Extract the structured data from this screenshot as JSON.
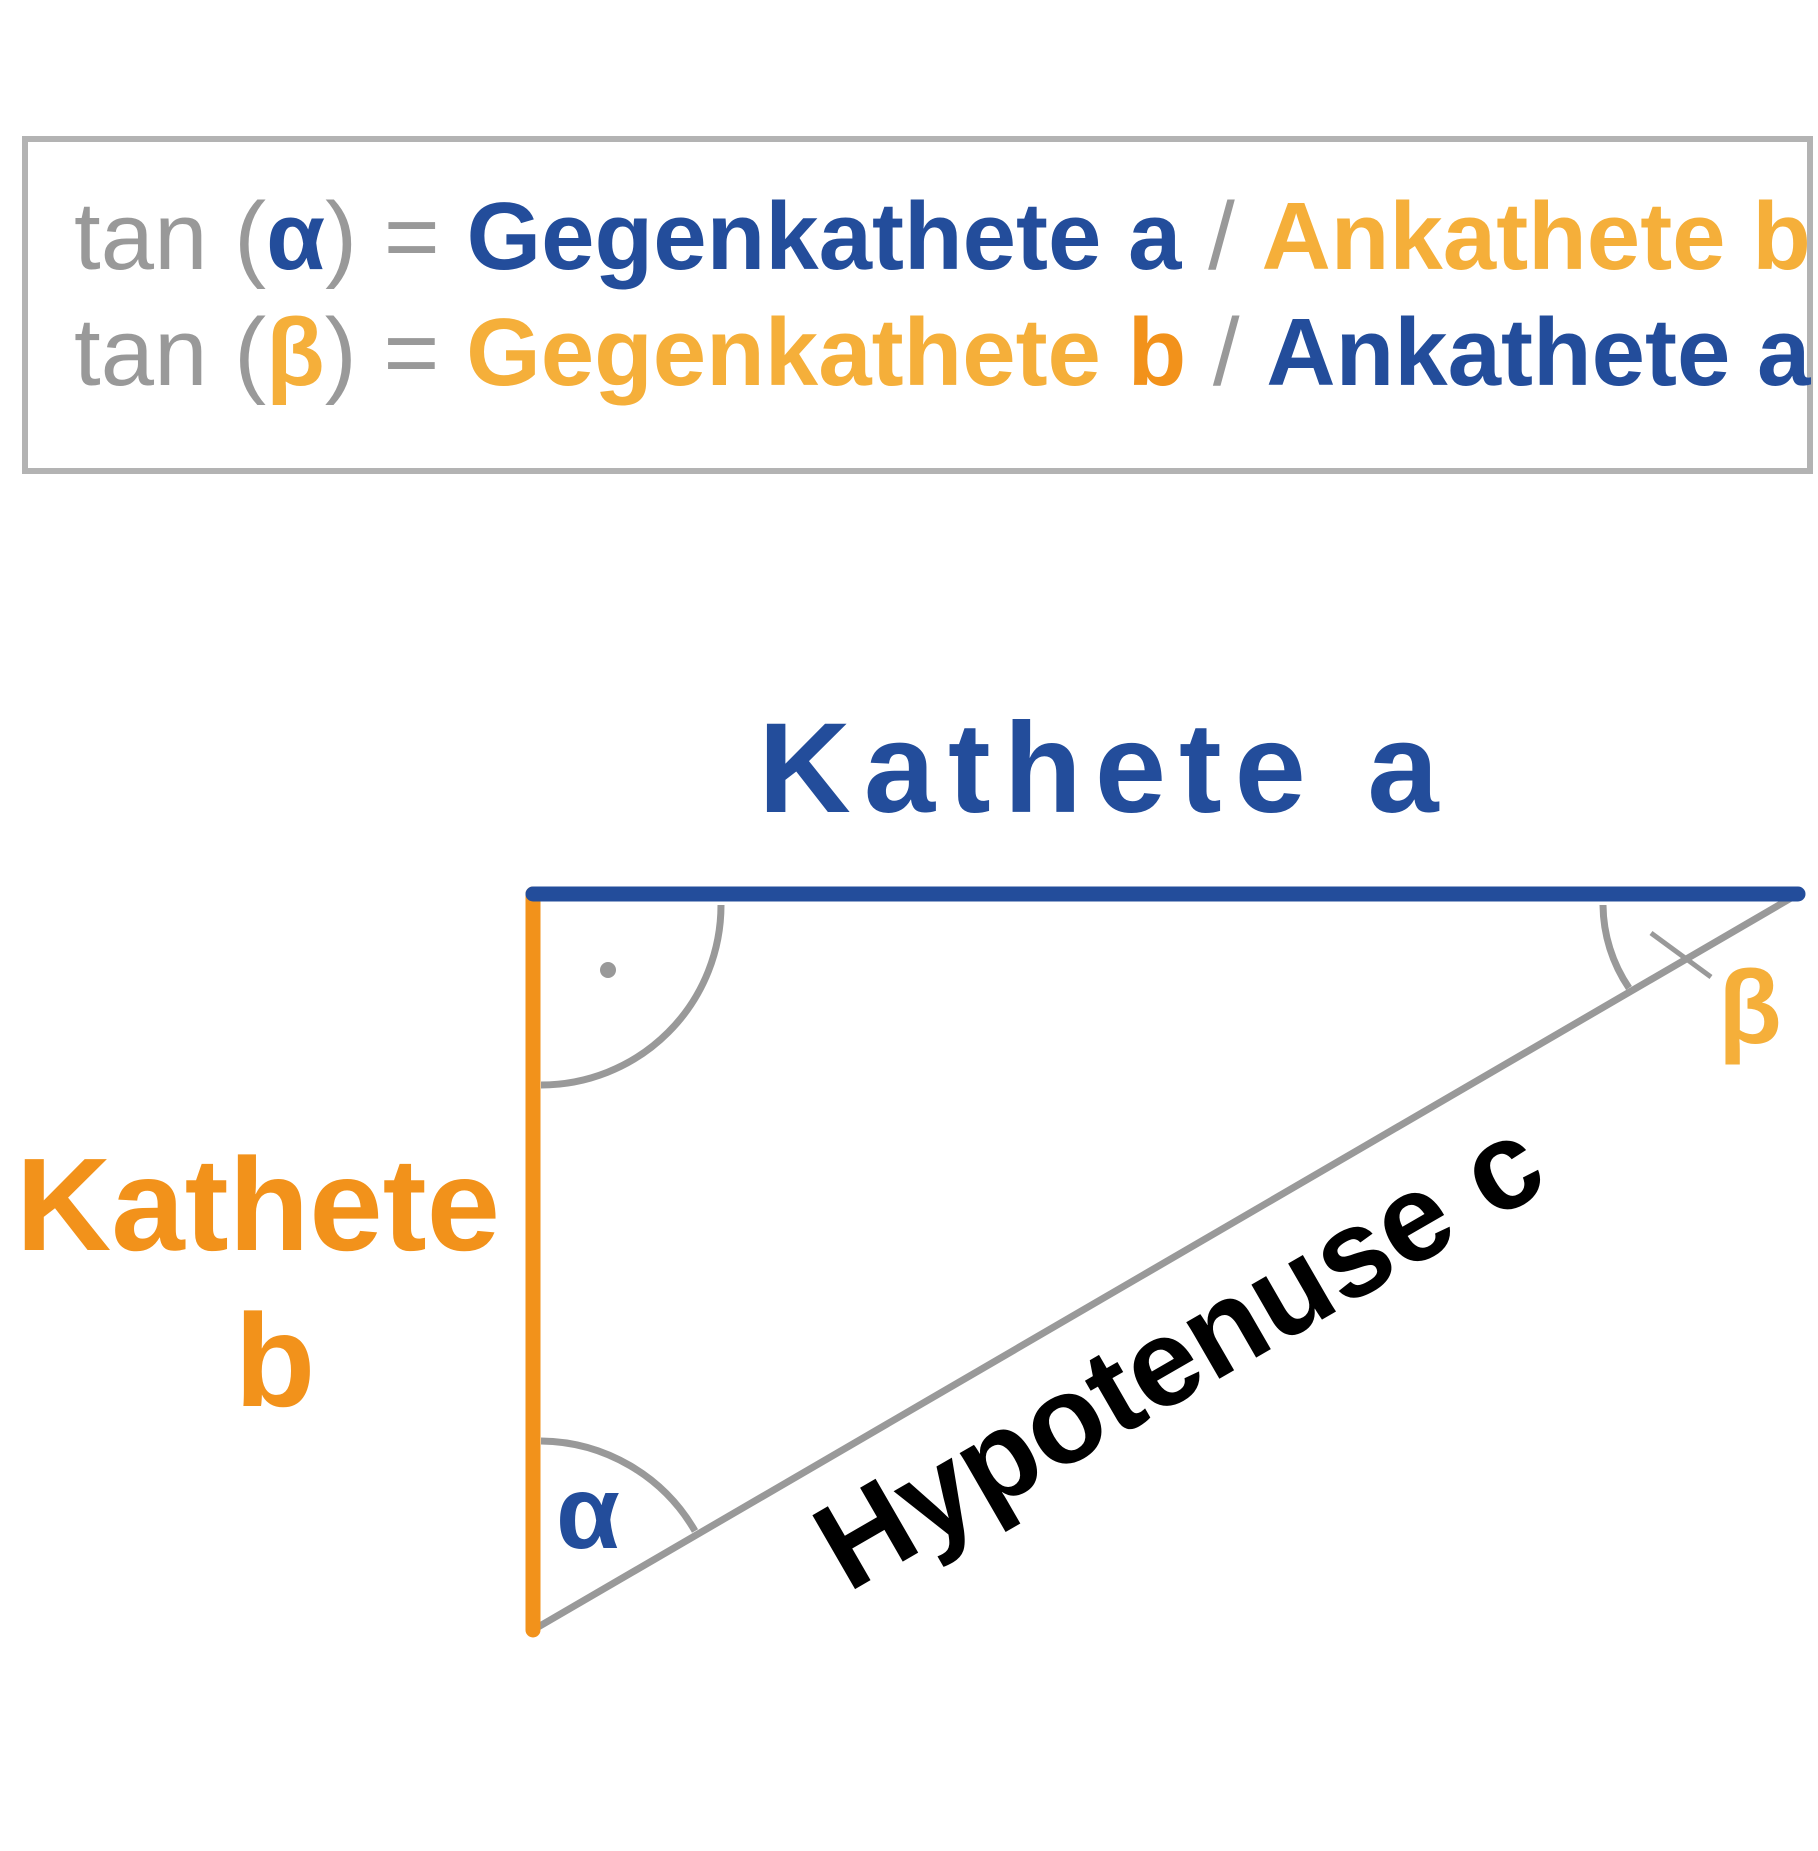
{
  "formula": {
    "line1": {
      "fn": "tan",
      "open_paren": " (",
      "angle": "α",
      "close_paren": ")",
      "equals": " = ",
      "numerator": "Gegenkathete a",
      "slash": " / ",
      "denominator": "Ankathete b"
    },
    "line2": {
      "fn": "tan",
      "open_paren": " (",
      "angle": "β",
      "close_paren": ")",
      "equals": " = ",
      "numerator": "Gegenkathete ",
      "numerator_letter": "b",
      "slash": " / ",
      "denominator": "Ankathete a"
    }
  },
  "triangle": {
    "side_a_label": "Kathete a",
    "side_b_label_line1": "Kathete",
    "side_b_label_line2": "b",
    "hypotenuse_label": "Hypotenuse c",
    "angle_alpha": "α",
    "angle_beta": "β",
    "right_angle_marker": "·"
  },
  "colors": {
    "blue": "#234d9b",
    "orange": "#f2921b",
    "yellow": "#f5af3a",
    "gray": "#999999",
    "black": "#000000"
  }
}
